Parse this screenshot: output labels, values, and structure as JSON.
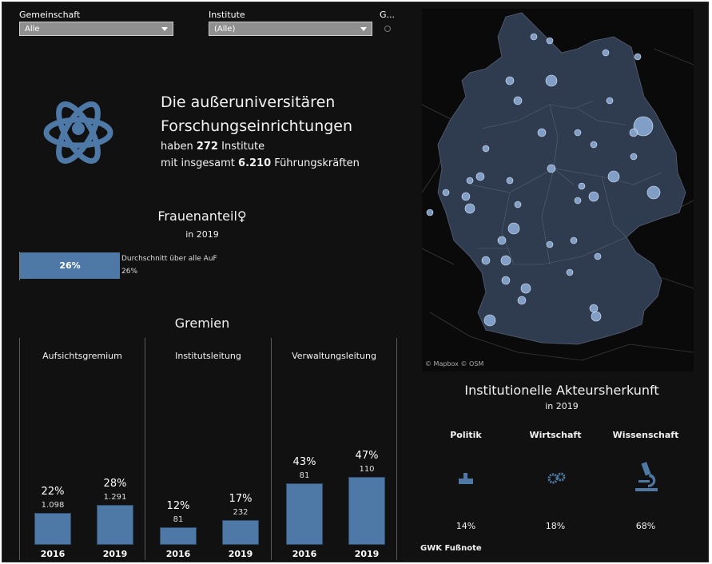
{
  "filters": {
    "gemeinschaft": {
      "label": "Gemeinschaft",
      "value": "Alle"
    },
    "institute": {
      "label": "Institute",
      "value": "(Alle)"
    },
    "third": {
      "label": "G..."
    }
  },
  "header": {
    "line1": "Die außeruniversitären",
    "line2": "Forschungseinrichtungen",
    "prefix1": "haben",
    "institutes_count": "272",
    "suffix1": "Institute",
    "prefix2": "mit insgesamt",
    "leaders_count": "6.210",
    "suffix2": "Führungskräften"
  },
  "frauenanteil": {
    "title": "Frauenanteil♀",
    "year": "in 2019",
    "bar_label": "26%",
    "bar_fraction": 0.26,
    "avg_label": "Durchschnitt über alle AuF",
    "avg_value": "26%"
  },
  "gremien": {
    "title": "Gremien",
    "columns": [
      {
        "title": "Aufsichtsgremium",
        "bars": [
          {
            "year": "2016",
            "pct": "22%",
            "count": "1.098",
            "value": 22
          },
          {
            "year": "2019",
            "pct": "28%",
            "count": "1.291",
            "value": 28
          }
        ]
      },
      {
        "title": "Institutsleitung",
        "bars": [
          {
            "year": "2016",
            "pct": "12%",
            "count": "81",
            "value": 12
          },
          {
            "year": "2019",
            "pct": "17%",
            "count": "232",
            "value": 17
          }
        ]
      },
      {
        "title": "Verwaltungsleitung",
        "bars": [
          {
            "year": "2016",
            "pct": "43%",
            "count": "81",
            "value": 43
          },
          {
            "year": "2019",
            "pct": "47%",
            "count": "110",
            "value": 47
          }
        ]
      }
    ]
  },
  "map": {
    "attribution": "© Mapbox © OSM",
    "region_color": "#2f3b4f",
    "marker_color": "#8fb0dc"
  },
  "herkunft": {
    "title": "Institutionelle Akteursherkunft",
    "year": "in 2019",
    "items": [
      {
        "label": "Politik",
        "pct": "14%",
        "icon": "politics-icon"
      },
      {
        "label": "Wirtschaft",
        "pct": "18%",
        "icon": "gears-icon"
      },
      {
        "label": "Wissenschaft",
        "pct": "68%",
        "icon": "microscope-icon"
      }
    ],
    "footnote": "GWK Fußnote"
  },
  "colors": {
    "accent": "#4e79a7",
    "background": "#111112"
  }
}
